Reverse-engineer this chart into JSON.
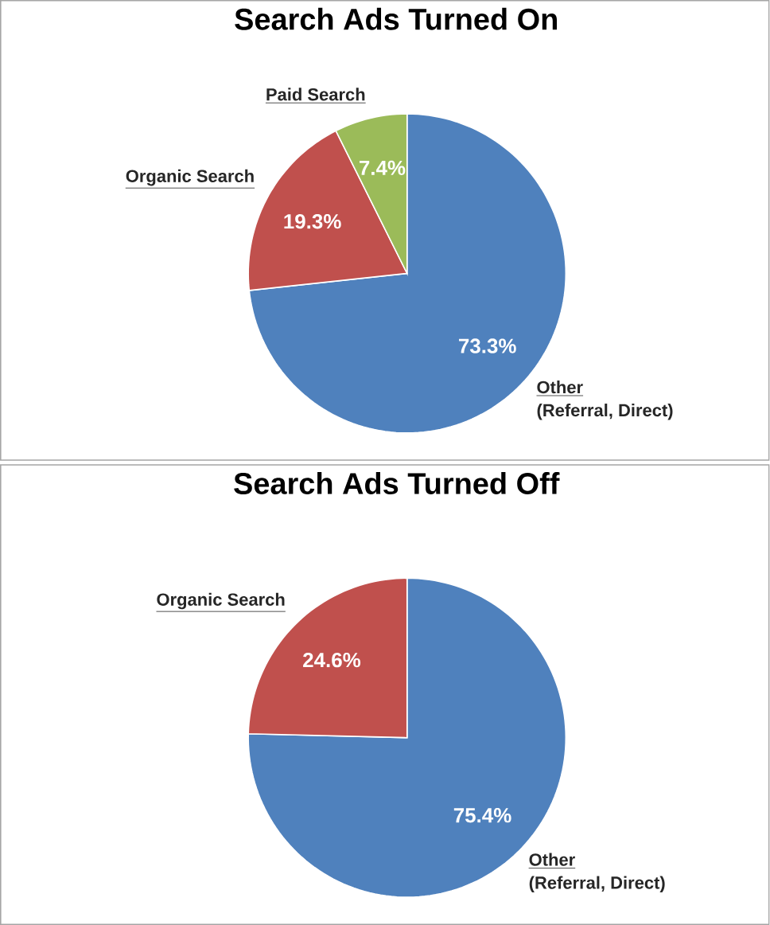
{
  "chart_data": [
    {
      "type": "pie",
      "title": "Search Ads Turned On",
      "categories": [
        "Other",
        "Organic Search",
        "Paid Search"
      ],
      "values": [
        73.3,
        19.3,
        7.4
      ],
      "value_labels": [
        "73.3%",
        "19.3%",
        "7.4%"
      ],
      "colors": [
        "#4f81bd",
        "#c0504d",
        "#9bbb59"
      ],
      "annotations": [
        "(Referral, Direct)"
      ]
    },
    {
      "type": "pie",
      "title": "Search Ads Turned Off",
      "categories": [
        "Other",
        "Organic Search"
      ],
      "values": [
        75.4,
        24.6
      ],
      "value_labels": [
        "75.4%",
        "24.6%"
      ],
      "colors": [
        "#4f81bd",
        "#c0504d"
      ],
      "annotations": [
        "(Referral, Direct)"
      ]
    }
  ]
}
